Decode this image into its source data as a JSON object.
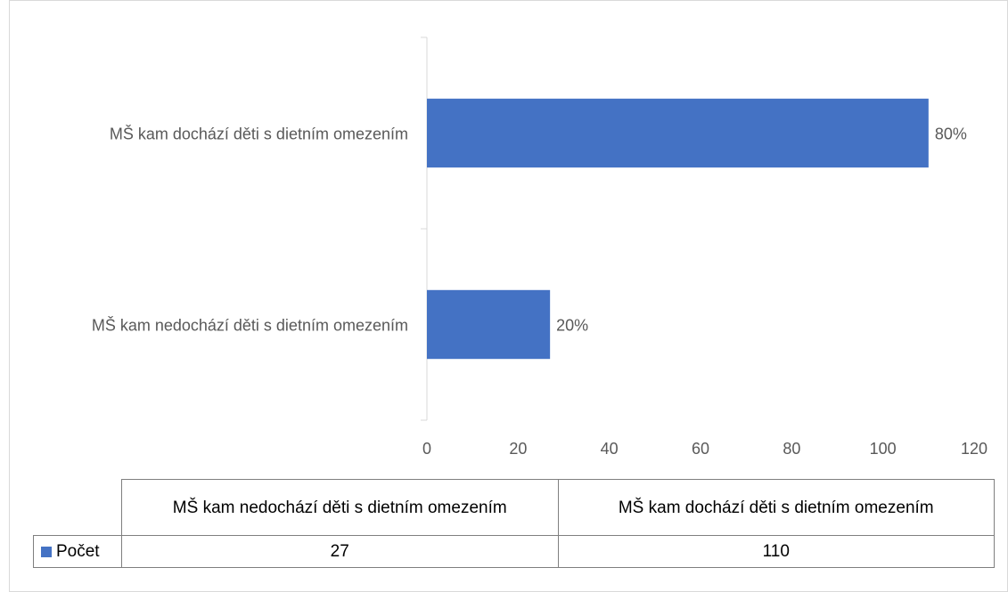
{
  "chart_data": {
    "type": "bar",
    "orientation": "horizontal",
    "categories": [
      "MŠ kam nedochází děti s dietním omezením",
      "MŠ kam dochází děti s dietním omezením"
    ],
    "series": [
      {
        "name": "Počet",
        "color": "#4472c4",
        "values": [
          27,
          110
        ],
        "value_labels": [
          "20%",
          "80%"
        ]
      }
    ],
    "xlim": [
      0,
      120
    ],
    "xticks": [
      0,
      20,
      40,
      60,
      80,
      100,
      120
    ],
    "data_table": true
  }
}
